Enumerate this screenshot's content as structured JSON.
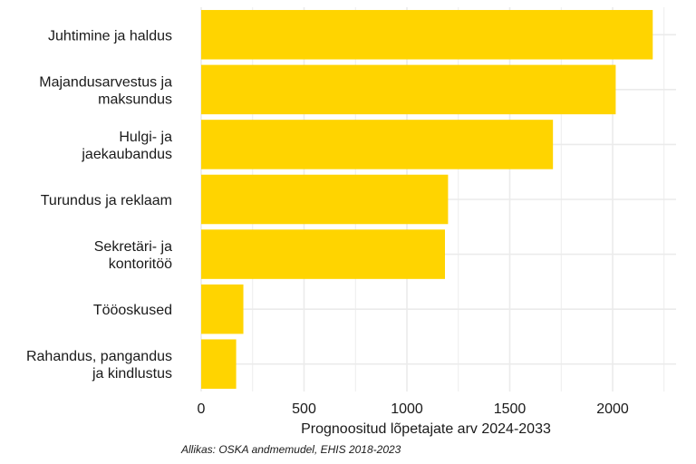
{
  "chart_data": {
    "type": "bar",
    "orientation": "horizontal",
    "categories": [
      "Juhtimine ja haldus",
      "Majandusarvestus ja maksundus",
      "Hulgi- ja jaekaubandus",
      "Turundus ja reklaam",
      "Sekretäri- ja kontoritöö",
      "Tööoskused",
      "Rahandus, pangandus ja kindlustus"
    ],
    "category_lines": [
      [
        "Juhtimine ja haldus"
      ],
      [
        "Majandusarvestus ja",
        "maksundus"
      ],
      [
        "Hulgi- ja",
        "jaekaubandus"
      ],
      [
        "Turundus ja reklaam"
      ],
      [
        "Sekretäri- ja",
        "kontoritöö"
      ],
      [
        "Tööoskused"
      ],
      [
        "Rahandus, pangandus",
        "ja kindlustus"
      ]
    ],
    "values": [
      2195,
      2015,
      1710,
      1200,
      1185,
      205,
      170
    ],
    "bar_color": "#FFD400",
    "grid_color": "#EBEBEB",
    "xlabel": "Prognoositud lõpetajate arv 2024-2033",
    "ylabel": "",
    "title": "",
    "xlim": [
      0,
      2250
    ],
    "x_ticks": [
      0,
      500,
      1000,
      1500,
      2000
    ],
    "x_tick_labels": [
      "0",
      "500",
      "1000",
      "1500",
      "2000"
    ],
    "grid": true
  },
  "source_note": "Allikas: OSKA andmemudel, EHIS 2018-2023"
}
